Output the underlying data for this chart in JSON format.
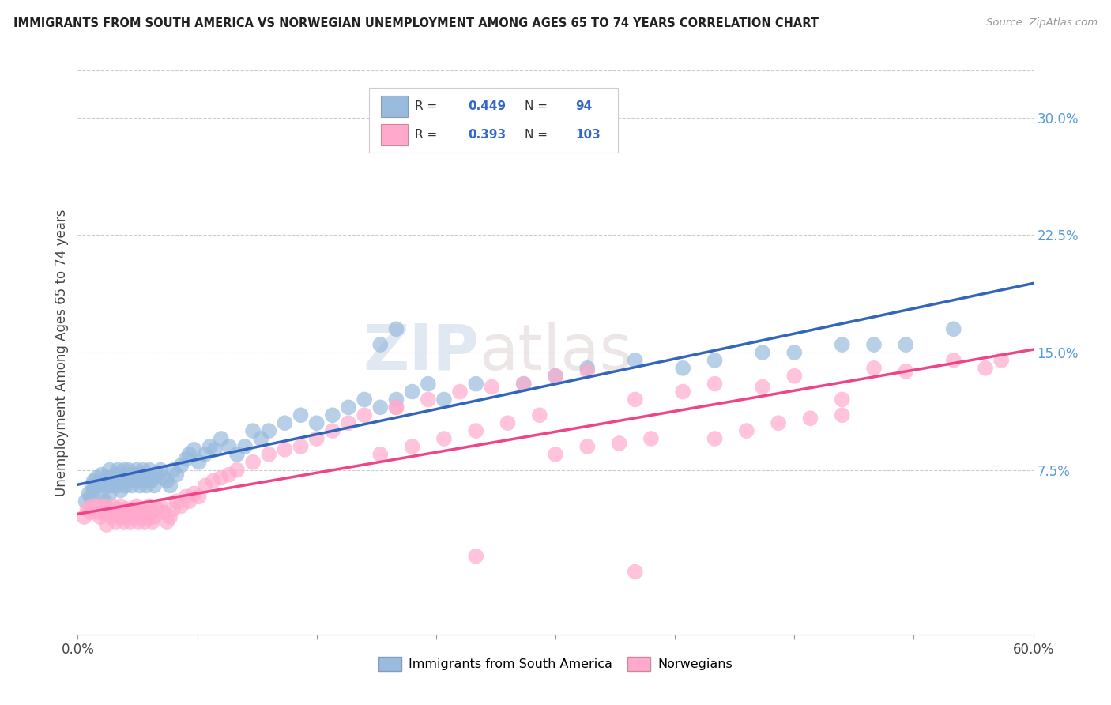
{
  "title": "IMMIGRANTS FROM SOUTH AMERICA VS NORWEGIAN UNEMPLOYMENT AMONG AGES 65 TO 74 YEARS CORRELATION CHART",
  "source": "Source: ZipAtlas.com",
  "ylabel": "Unemployment Among Ages 65 to 74 years",
  "xlim": [
    0.0,
    0.6
  ],
  "ylim": [
    -0.03,
    0.33
  ],
  "xtick_positions": [
    0.0,
    0.075,
    0.15,
    0.225,
    0.3,
    0.375,
    0.45,
    0.525,
    0.6
  ],
  "xtick_labels_shown": {
    "0.0": "0.0%",
    "0.60": "60.0%"
  },
  "ytick_labels_right": [
    "7.5%",
    "15.0%",
    "22.5%",
    "30.0%"
  ],
  "yticks_right": [
    0.075,
    0.15,
    0.225,
    0.3
  ],
  "blue_color": "#99BBDD",
  "pink_color": "#FFAACC",
  "blue_line_color": "#3366BB",
  "pink_line_color": "#EE4488",
  "R_blue": 0.449,
  "N_blue": 94,
  "R_pink": 0.393,
  "N_pink": 103,
  "legend_labels": [
    "Immigrants from South America",
    "Norwegians"
  ],
  "watermark_zip": "ZIP",
  "watermark_atlas": "atlas",
  "blue_scatter_x": [
    0.005,
    0.007,
    0.008,
    0.009,
    0.01,
    0.01,
    0.012,
    0.013,
    0.015,
    0.015,
    0.016,
    0.017,
    0.018,
    0.019,
    0.02,
    0.02,
    0.021,
    0.022,
    0.023,
    0.024,
    0.025,
    0.025,
    0.026,
    0.027,
    0.028,
    0.029,
    0.03,
    0.03,
    0.031,
    0.032,
    0.033,
    0.034,
    0.035,
    0.036,
    0.037,
    0.038,
    0.039,
    0.04,
    0.041,
    0.042,
    0.043,
    0.044,
    0.045,
    0.046,
    0.047,
    0.048,
    0.05,
    0.052,
    0.054,
    0.056,
    0.058,
    0.06,
    0.062,
    0.065,
    0.068,
    0.07,
    0.073,
    0.076,
    0.08,
    0.083,
    0.086,
    0.09,
    0.095,
    0.1,
    0.105,
    0.11,
    0.115,
    0.12,
    0.13,
    0.14,
    0.15,
    0.16,
    0.17,
    0.18,
    0.19,
    0.2,
    0.21,
    0.22,
    0.23,
    0.25,
    0.28,
    0.3,
    0.32,
    0.35,
    0.38,
    0.4,
    0.43,
    0.45,
    0.48,
    0.5,
    0.19,
    0.2,
    0.52,
    0.55
  ],
  "blue_scatter_y": [
    0.055,
    0.06,
    0.058,
    0.065,
    0.062,
    0.068,
    0.07,
    0.065,
    0.06,
    0.072,
    0.068,
    0.055,
    0.07,
    0.065,
    0.06,
    0.075,
    0.07,
    0.065,
    0.068,
    0.072,
    0.065,
    0.075,
    0.068,
    0.062,
    0.07,
    0.075,
    0.065,
    0.072,
    0.068,
    0.075,
    0.07,
    0.065,
    0.072,
    0.068,
    0.075,
    0.07,
    0.065,
    0.072,
    0.075,
    0.068,
    0.065,
    0.07,
    0.075,
    0.068,
    0.07,
    0.065,
    0.072,
    0.075,
    0.07,
    0.068,
    0.065,
    0.075,
    0.072,
    0.078,
    0.082,
    0.085,
    0.088,
    0.08,
    0.085,
    0.09,
    0.088,
    0.095,
    0.09,
    0.085,
    0.09,
    0.1,
    0.095,
    0.1,
    0.105,
    0.11,
    0.105,
    0.11,
    0.115,
    0.12,
    0.115,
    0.12,
    0.125,
    0.13,
    0.12,
    0.13,
    0.13,
    0.135,
    0.14,
    0.145,
    0.14,
    0.145,
    0.15,
    0.15,
    0.155,
    0.155,
    0.155,
    0.165,
    0.155,
    0.165
  ],
  "pink_scatter_x": [
    0.004,
    0.006,
    0.008,
    0.009,
    0.01,
    0.012,
    0.013,
    0.014,
    0.015,
    0.016,
    0.017,
    0.018,
    0.019,
    0.02,
    0.021,
    0.022,
    0.023,
    0.024,
    0.025,
    0.026,
    0.027,
    0.028,
    0.029,
    0.03,
    0.031,
    0.032,
    0.033,
    0.034,
    0.035,
    0.036,
    0.037,
    0.038,
    0.039,
    0.04,
    0.041,
    0.042,
    0.043,
    0.044,
    0.045,
    0.046,
    0.047,
    0.048,
    0.05,
    0.052,
    0.054,
    0.056,
    0.058,
    0.06,
    0.062,
    0.065,
    0.068,
    0.07,
    0.073,
    0.076,
    0.08,
    0.085,
    0.09,
    0.095,
    0.1,
    0.11,
    0.12,
    0.13,
    0.14,
    0.15,
    0.16,
    0.17,
    0.18,
    0.2,
    0.22,
    0.24,
    0.26,
    0.28,
    0.3,
    0.32,
    0.35,
    0.38,
    0.4,
    0.43,
    0.45,
    0.48,
    0.5,
    0.52,
    0.55,
    0.57,
    0.4,
    0.42,
    0.44,
    0.46,
    0.48,
    0.3,
    0.32,
    0.34,
    0.36,
    0.19,
    0.21,
    0.23,
    0.25,
    0.27,
    0.29,
    0.2,
    0.35,
    0.25,
    0.58
  ],
  "pink_scatter_y": [
    0.045,
    0.05,
    0.048,
    0.052,
    0.05,
    0.048,
    0.052,
    0.045,
    0.05,
    0.048,
    0.052,
    0.04,
    0.048,
    0.05,
    0.045,
    0.052,
    0.048,
    0.042,
    0.05,
    0.045,
    0.052,
    0.048,
    0.042,
    0.045,
    0.05,
    0.048,
    0.042,
    0.045,
    0.05,
    0.048,
    0.052,
    0.042,
    0.045,
    0.048,
    0.05,
    0.042,
    0.048,
    0.045,
    0.052,
    0.048,
    0.042,
    0.045,
    0.05,
    0.052,
    0.048,
    0.042,
    0.045,
    0.05,
    0.055,
    0.052,
    0.058,
    0.055,
    0.06,
    0.058,
    0.065,
    0.068,
    0.07,
    0.072,
    0.075,
    0.08,
    0.085,
    0.088,
    0.09,
    0.095,
    0.1,
    0.105,
    0.11,
    0.115,
    0.12,
    0.125,
    0.128,
    0.13,
    0.135,
    0.138,
    0.12,
    0.125,
    0.13,
    0.128,
    0.135,
    0.12,
    0.14,
    0.138,
    0.145,
    0.14,
    0.095,
    0.1,
    0.105,
    0.108,
    0.11,
    0.085,
    0.09,
    0.092,
    0.095,
    0.085,
    0.09,
    0.095,
    0.1,
    0.105,
    0.11,
    0.115,
    0.01,
    0.02,
    0.145
  ]
}
